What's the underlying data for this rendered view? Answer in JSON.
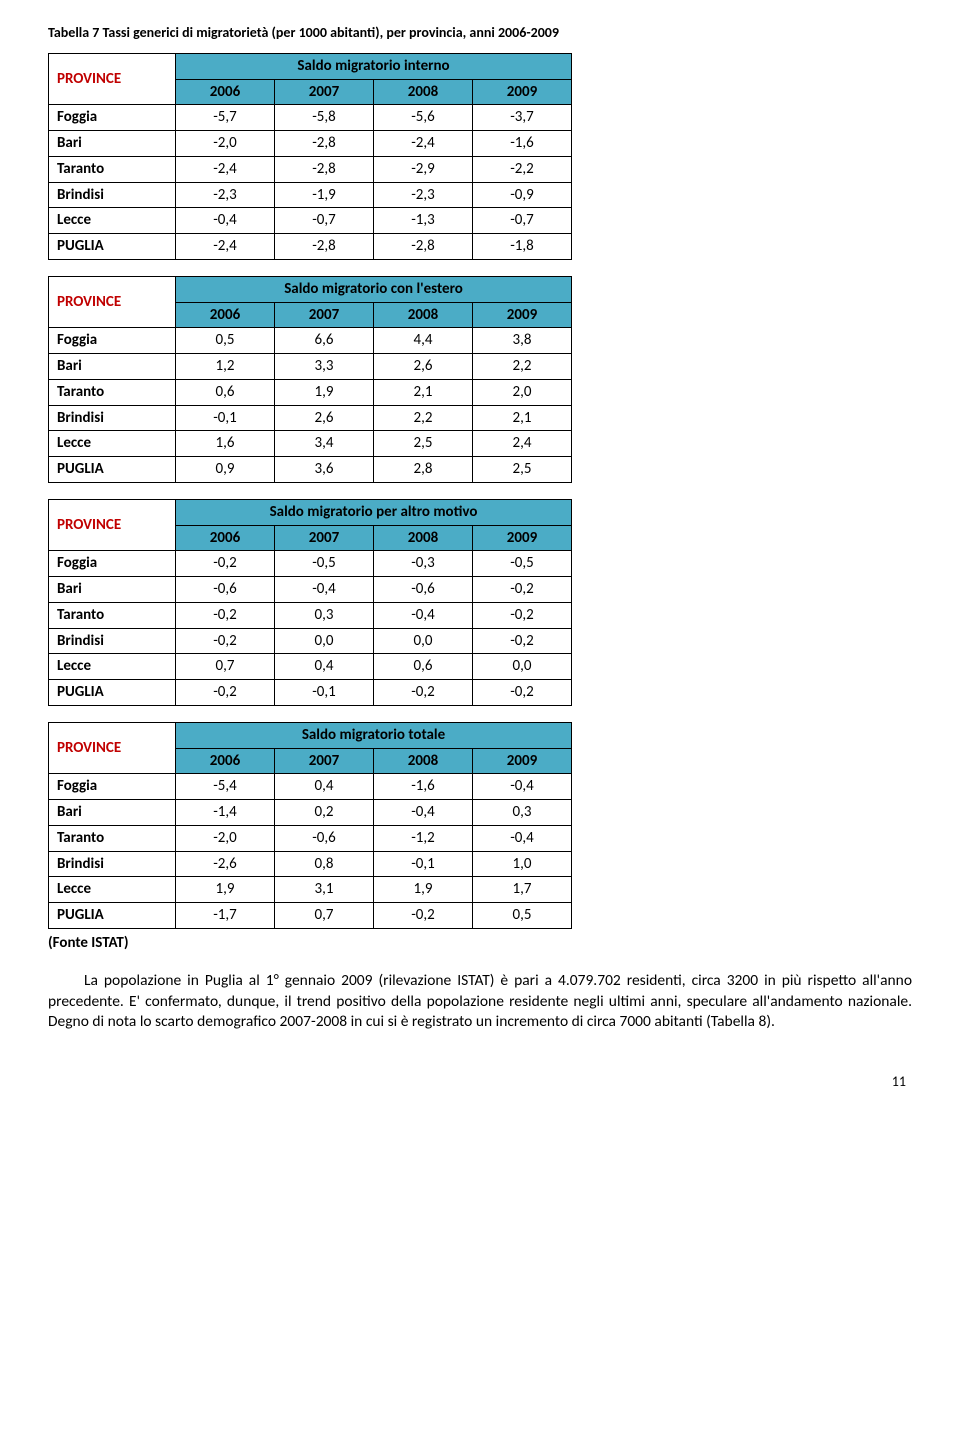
{
  "caption": "Tabella 7 Tassi generici di migratorietà (per 1000 abitanti), per provincia, anni 2006-2009",
  "province_label": "PROVINCE",
  "years": [
    "2006",
    "2007",
    "2008",
    "2009"
  ],
  "row_labels": [
    "Foggia",
    "Bari",
    "Taranto",
    "Brindisi",
    "Lecce",
    "PUGLIA"
  ],
  "source": "(Fonte ISTAT)",
  "tables": [
    {
      "title": "Saldo migratorio interno",
      "rows": [
        [
          "-5,7",
          "-5,8",
          "-5,6",
          "-3,7"
        ],
        [
          "-2,0",
          "-2,8",
          "-2,4",
          "-1,6"
        ],
        [
          "-2,4",
          "-2,8",
          "-2,9",
          "-2,2"
        ],
        [
          "-2,3",
          "-1,9",
          "-2,3",
          "-0,9"
        ],
        [
          "-0,4",
          "-0,7",
          "-1,3",
          "-0,7"
        ],
        [
          "-2,4",
          "-2,8",
          "-2,8",
          "-1,8"
        ]
      ]
    },
    {
      "title": "Saldo migratorio con l'estero",
      "rows": [
        [
          "0,5",
          "6,6",
          "4,4",
          "3,8"
        ],
        [
          "1,2",
          "3,3",
          "2,6",
          "2,2"
        ],
        [
          "0,6",
          "1,9",
          "2,1",
          "2,0"
        ],
        [
          "-0,1",
          "2,6",
          "2,2",
          "2,1"
        ],
        [
          "1,6",
          "3,4",
          "2,5",
          "2,4"
        ],
        [
          "0,9",
          "3,6",
          "2,8",
          "2,5"
        ]
      ]
    },
    {
      "title": "Saldo migratorio per altro motivo",
      "rows": [
        [
          "-0,2",
          "-0,5",
          "-0,3",
          "-0,5"
        ],
        [
          "-0,6",
          "-0,4",
          "-0,6",
          "-0,2"
        ],
        [
          "-0,2",
          "0,3",
          "-0,4",
          "-0,2"
        ],
        [
          "-0,2",
          "0,0",
          "0,0",
          "-0,2"
        ],
        [
          "0,7",
          "0,4",
          "0,6",
          "0,0"
        ],
        [
          "-0,2",
          "-0,1",
          "-0,2",
          "-0,2"
        ]
      ]
    },
    {
      "title": "Saldo migratorio totale",
      "rows": [
        [
          "-5,4",
          "0,4",
          "-1,6",
          "-0,4"
        ],
        [
          "-1,4",
          "0,2",
          "-0,4",
          "0,3"
        ],
        [
          "-2,0",
          "-0,6",
          "-1,2",
          "-0,4"
        ],
        [
          "-2,6",
          "0,8",
          "-0,1",
          "1,0"
        ],
        [
          "1,9",
          "3,1",
          "1,9",
          "1,7"
        ],
        [
          "-1,7",
          "0,7",
          "-0,2",
          "0,5"
        ]
      ]
    }
  ],
  "paragraph": "La popolazione in Puglia al 1° gennaio 2009 (rilevazione ISTAT) è pari a 4.079.702 residenti, circa 3200 in più rispetto all'anno precedente. E' confermato, dunque, il trend positivo della popolazione residente negli ultimi anni, speculare all'andamento nazionale. Degno di nota lo scarto demografico 2007-2008 in cui si è registrato un incremento di circa 7000 abitanti (Tabella 8).",
  "page_number": "11",
  "colors": {
    "header_bg": "#4bacc6",
    "province_text": "#c00000"
  },
  "typography": {
    "body_fontsize_pt": 12,
    "caption_fontsize_pt": 11
  }
}
